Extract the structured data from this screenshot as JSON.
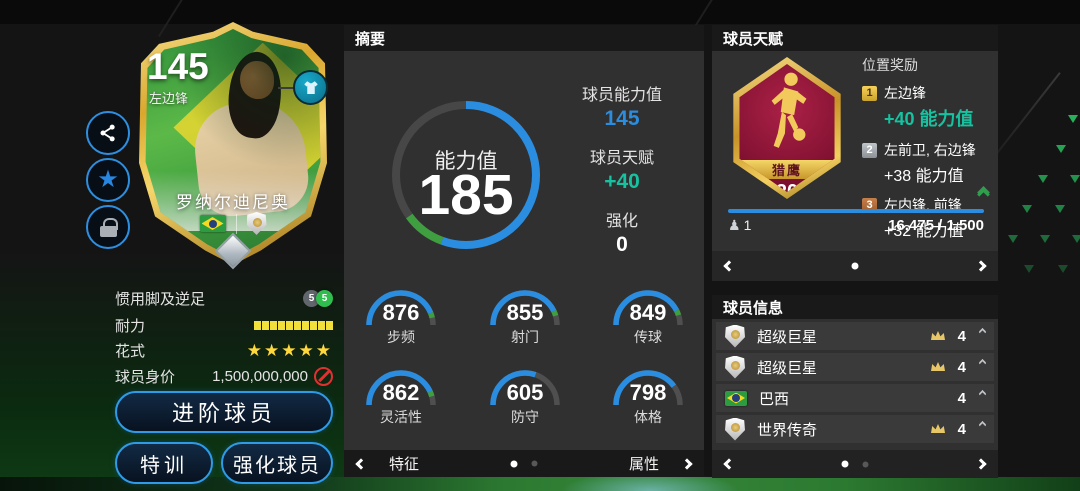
{
  "colors": {
    "accent_blue": "#2b8de0",
    "accent_teal": "#16c2a0",
    "arc_green": "#3f9e3f",
    "gold": "#f0c64a",
    "badge_crimson": "#8e1538",
    "star_yellow": "#ffd83d",
    "stamina_yellow": "#f2e13a",
    "prohibit_red": "#e03131"
  },
  "player_card": {
    "rating": "145",
    "position": "左边锋",
    "name": "罗纳尔迪尼奥",
    "flag_icon": "brazil-flag-icon",
    "club_icon": "club-shield-icon",
    "gem_icon": "diamond-gem-icon",
    "jersey_icon": "jersey-icon"
  },
  "side_buttons": {
    "share": "share-icon",
    "favorite": "star-icon",
    "lock": "lock-icon"
  },
  "attributes": {
    "foot": {
      "label": "惯用脚及逆足",
      "left_value": "5",
      "right_value": "5"
    },
    "stamina": {
      "label": "耐力",
      "segments": 10
    },
    "skill": {
      "label": "花式",
      "stars": "★★★★★"
    },
    "value": {
      "label": "球员身价",
      "amount": "1,500,000,000",
      "icon": "prohibited-icon"
    }
  },
  "actions": {
    "advance": "进阶球员",
    "training": "特训",
    "enhance": "强化球员"
  },
  "summary": {
    "title": "摘要",
    "gauge": {
      "label": "能力值",
      "value": "185",
      "blue_deg": 200,
      "green_deg": 34
    },
    "details": [
      {
        "label": "球员能力值",
        "value": "145"
      },
      {
        "label": "球员天赋",
        "value": "+40"
      },
      {
        "label": "强化",
        "value": "0"
      }
    ],
    "stats": [
      {
        "value": "876",
        "label": "步频",
        "pct": 0.876,
        "tip": true
      },
      {
        "value": "855",
        "label": "射门",
        "pct": 0.855,
        "tip": true
      },
      {
        "value": "849",
        "label": "传球",
        "pct": 0.849,
        "tip": true
      },
      {
        "value": "862",
        "label": "灵活性",
        "pct": 0.862,
        "tip": true
      },
      {
        "value": "605",
        "label": "防守",
        "pct": 0.605,
        "tip": false
      },
      {
        "value": "798",
        "label": "体格",
        "pct": 0.798,
        "tip": false
      }
    ],
    "nav": {
      "left_label": "特征",
      "right_label": "属性"
    }
  },
  "talent": {
    "title": "球员天赋",
    "badge": {
      "name": "猎鹰",
      "level": "20",
      "icon": "falcon-player-badge"
    },
    "bonus_title": "位置奖励",
    "bonuses": [
      {
        "rank": "1",
        "positions": "左边锋",
        "bonus": "+40 能力值",
        "highlight": true
      },
      {
        "rank": "2",
        "positions": "左前卫, 右边锋",
        "bonus": "+38 能力值",
        "highlight": false
      },
      {
        "rank": "3",
        "positions": "左内锋, 前锋",
        "bonus": "+32 能力值",
        "highlight": false
      }
    ],
    "progress": {
      "rank_value": "1",
      "text": "16,475 / 1,500"
    }
  },
  "info": {
    "title": "球员信息",
    "rows": [
      {
        "icon": "club-shield-icon",
        "label": "超级巨星",
        "has_crown": true,
        "count": "4"
      },
      {
        "icon": "club-shield-icon",
        "label": "超级巨星",
        "has_crown": true,
        "count": "4"
      },
      {
        "icon": "brazil-flag-icon",
        "label": "巴西",
        "has_crown": false,
        "count": "4"
      },
      {
        "icon": "club-shield-icon",
        "label": "世界传奇",
        "has_crown": true,
        "count": "4"
      }
    ]
  }
}
